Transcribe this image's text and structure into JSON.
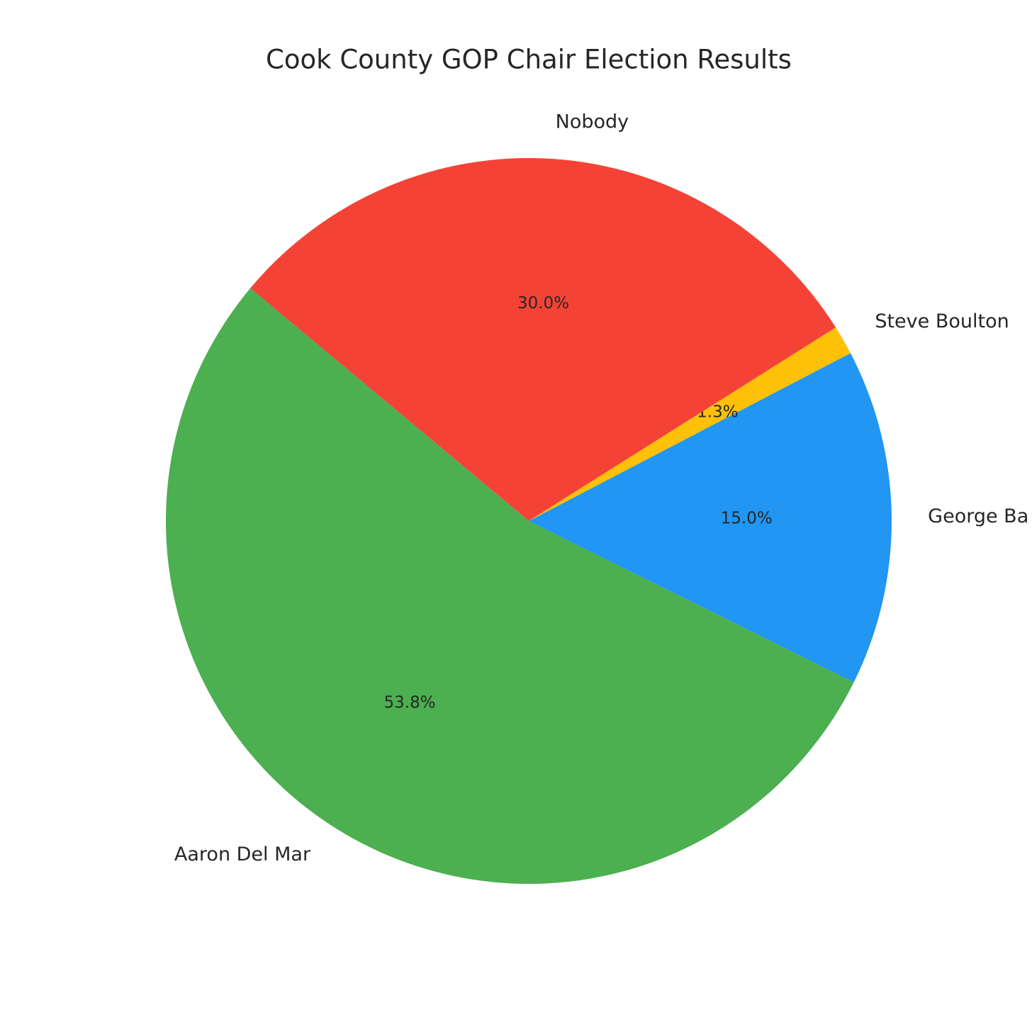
{
  "chart_data": {
    "type": "pie",
    "title": "Cook County GOP Chair Election Results",
    "categories": [
      "George Ba",
      "Steve Boulton",
      "Nobody",
      "Aaron Del Mar"
    ],
    "values": [
      15.0,
      1.3,
      30.0,
      53.8
    ],
    "value_labels": [
      "15.0%",
      "1.3%",
      "30.0%",
      "53.8%"
    ],
    "colors": [
      "#2196f3",
      "#ffc107",
      "#f44336",
      "#4caf50"
    ]
  }
}
